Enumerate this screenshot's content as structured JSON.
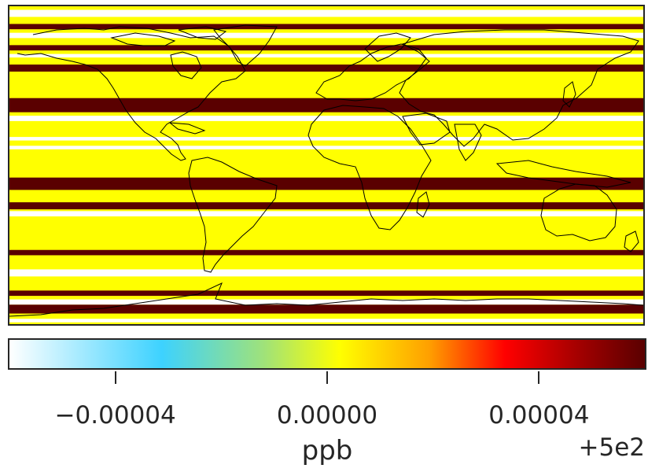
{
  "map": {
    "background_color": "#ffff00",
    "coastline_color": "#000000",
    "band_colors": {
      "high": "#5a0000",
      "low": "#ffffff",
      "base": "#ffff00"
    },
    "bands": [
      {
        "lat_from": 88,
        "lat_to": 84,
        "level": "low"
      },
      {
        "lat_from": 80,
        "lat_to": 77,
        "level": "high"
      },
      {
        "lat_from": 75,
        "lat_to": 72,
        "level": "low"
      },
      {
        "lat_from": 68,
        "lat_to": 65,
        "level": "high"
      },
      {
        "lat_from": 63,
        "lat_to": 61,
        "level": "low"
      },
      {
        "lat_from": 57,
        "lat_to": 53,
        "level": "high"
      },
      {
        "lat_from": 38,
        "lat_to": 30,
        "level": "high"
      },
      {
        "lat_from": 28,
        "lat_to": 25,
        "level": "low"
      },
      {
        "lat_from": 16,
        "lat_to": 14,
        "level": "low"
      },
      {
        "lat_from": 11,
        "lat_to": 9,
        "level": "low"
      },
      {
        "lat_from": -7,
        "lat_to": -14,
        "level": "high"
      },
      {
        "lat_from": -21,
        "lat_to": -25,
        "level": "high"
      },
      {
        "lat_from": -26,
        "lat_to": -29,
        "level": "low"
      },
      {
        "lat_from": -48,
        "lat_to": -51,
        "level": "high"
      },
      {
        "lat_from": -59,
        "lat_to": -63,
        "level": "low"
      },
      {
        "lat_from": -71,
        "lat_to": -74,
        "level": "high"
      },
      {
        "lat_from": -76,
        "lat_to": -79,
        "level": "low"
      },
      {
        "lat_from": -79,
        "lat_to": -84,
        "level": "high"
      },
      {
        "lat_from": -87,
        "lat_to": -89,
        "level": "low"
      }
    ]
  },
  "colorbar": {
    "label": "ppb",
    "offset_text": "+5e2",
    "ticks": [
      {
        "value": -4e-05,
        "label": "−0.00004"
      },
      {
        "value": 0.0,
        "label": "0.00000"
      },
      {
        "value": 4e-05,
        "label": "0.00004"
      }
    ],
    "range": [
      -6e-05,
      6e-05
    ],
    "colors": [
      "#ffffff",
      "#3dd2ff",
      "#ffff00",
      "#ff0000",
      "#5a0000"
    ]
  }
}
